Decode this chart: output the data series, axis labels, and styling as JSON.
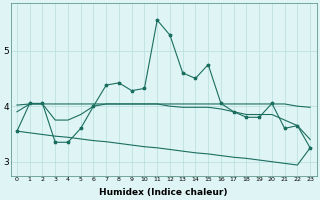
{
  "xlabel": "Humidex (Indice chaleur)",
  "bg_color": "#dff4f4",
  "grid_color": "#b8dede",
  "line_color": "#1a6e60",
  "xlim": [
    -0.5,
    23.5
  ],
  "ylim": [
    2.75,
    5.85
  ],
  "xticks": [
    0,
    1,
    2,
    3,
    4,
    5,
    6,
    7,
    8,
    9,
    10,
    11,
    12,
    13,
    14,
    15,
    16,
    17,
    18,
    19,
    20,
    21,
    22,
    23
  ],
  "yticks": [
    3,
    4,
    5
  ],
  "line1_x": [
    0,
    1,
    2,
    3,
    4,
    5,
    6,
    7,
    8,
    9,
    10,
    11,
    12,
    13,
    14,
    15,
    16,
    17,
    18,
    19,
    20,
    21,
    22,
    23
  ],
  "line1_y": [
    3.55,
    4.05,
    4.05,
    3.35,
    3.35,
    3.6,
    4.0,
    4.38,
    4.42,
    4.28,
    4.32,
    5.55,
    5.28,
    4.6,
    4.5,
    4.75,
    4.05,
    3.9,
    3.8,
    3.8,
    4.05,
    3.6,
    3.65,
    3.25
  ],
  "line2_x": [
    0,
    1,
    2,
    3,
    4,
    5,
    6,
    7,
    8,
    9,
    10,
    11,
    12,
    13,
    14,
    15,
    16,
    17,
    18,
    19,
    20,
    21,
    22,
    23
  ],
  "line2_y": [
    4.02,
    4.04,
    4.04,
    4.04,
    4.04,
    4.04,
    4.04,
    4.04,
    4.04,
    4.04,
    4.04,
    4.04,
    4.04,
    4.04,
    4.04,
    4.04,
    4.04,
    4.04,
    4.04,
    4.04,
    4.04,
    4.04,
    4.0,
    3.98
  ],
  "line3_x": [
    0,
    1,
    2,
    3,
    4,
    5,
    6,
    7,
    8,
    9,
    10,
    11,
    12,
    13,
    14,
    15,
    16,
    17,
    18,
    19,
    20,
    21,
    22,
    23
  ],
  "line3_y": [
    3.9,
    4.04,
    4.04,
    3.75,
    3.75,
    3.85,
    4.0,
    4.04,
    4.04,
    4.04,
    4.04,
    4.04,
    4.0,
    3.98,
    3.98,
    3.98,
    3.95,
    3.9,
    3.85,
    3.85,
    3.85,
    3.75,
    3.65,
    3.4
  ],
  "line4_x": [
    0,
    1,
    2,
    3,
    4,
    5,
    6,
    7,
    8,
    9,
    10,
    11,
    12,
    13,
    14,
    15,
    16,
    17,
    18,
    19,
    20,
    21,
    22,
    23
  ],
  "line4_y": [
    3.55,
    3.52,
    3.49,
    3.46,
    3.44,
    3.41,
    3.38,
    3.36,
    3.33,
    3.3,
    3.27,
    3.25,
    3.22,
    3.19,
    3.16,
    3.14,
    3.11,
    3.08,
    3.06,
    3.03,
    3.0,
    2.97,
    2.94,
    3.25
  ]
}
